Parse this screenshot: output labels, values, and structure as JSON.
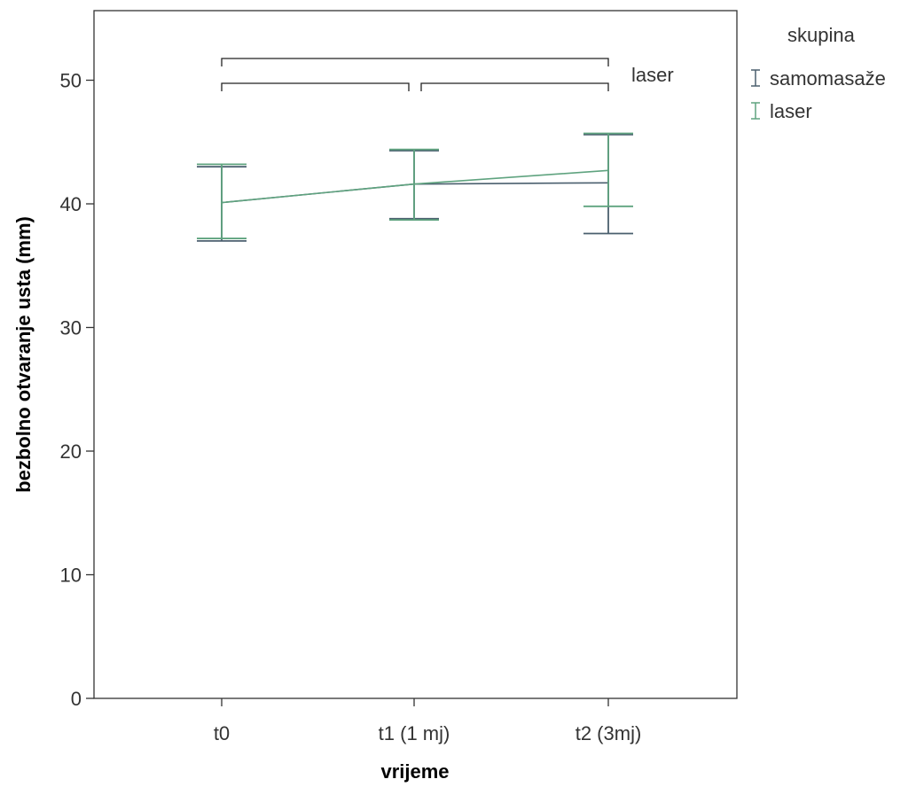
{
  "chart_data": {
    "type": "line",
    "categories": [
      "t0",
      "t1 (1 mj)",
      "t2 (3mj)"
    ],
    "xlabel": "vrijeme",
    "ylabel": "bezbolno otvaranje usta (mm)",
    "ylim": [
      0,
      55
    ],
    "yticks": [
      0,
      10,
      20,
      30,
      40,
      50
    ],
    "grid": false,
    "legend": {
      "title": "skupina",
      "placement": "right"
    },
    "series": [
      {
        "name": "samomasaže",
        "color": "#4a5f6e",
        "mean": [
          40.1,
          41.6,
          41.7
        ],
        "ci_low": [
          37.0,
          38.8,
          37.6
        ],
        "ci_high": [
          43.0,
          44.3,
          45.6
        ]
      },
      {
        "name": "laser",
        "color": "#5fa37f",
        "mean": [
          40.1,
          41.6,
          42.7
        ],
        "ci_low": [
          37.2,
          38.7,
          39.8
        ],
        "ci_high": [
          43.2,
          44.4,
          45.7
        ]
      }
    ],
    "annotations": [
      {
        "text": "laser"
      }
    ],
    "brackets": [
      {
        "from": 0,
        "to": 2,
        "level": 2
      },
      {
        "from": 0,
        "to": 1,
        "level": 1
      },
      {
        "from": 1,
        "to": 2,
        "level": 1
      }
    ]
  }
}
